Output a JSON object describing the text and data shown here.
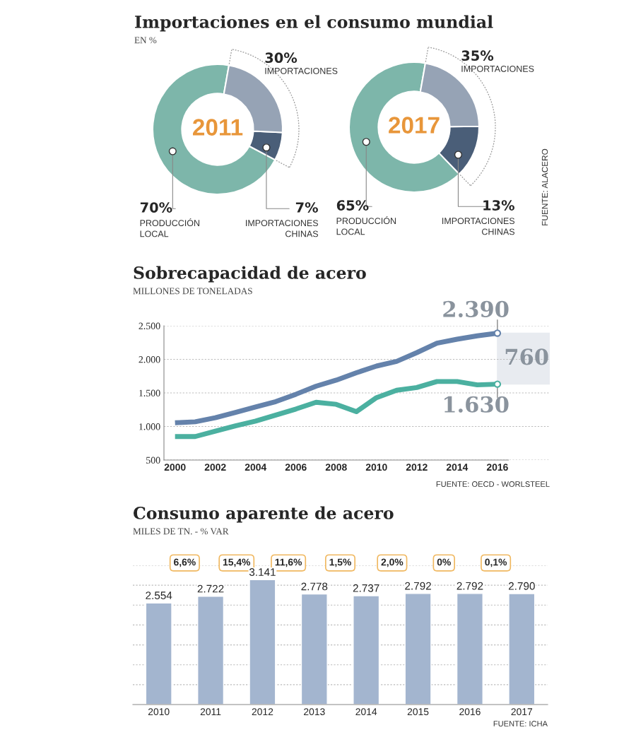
{
  "chart_data": [
    {
      "type": "donut",
      "title": "Importaciones en el consumo mundial",
      "subtitle": "EN %",
      "categories": [
        "PRODUCCIÓN\nLOCAL",
        "IMPORTACIONES\nCHINAS",
        null
      ],
      "values": [
        70,
        7,
        23
      ],
      "colors": [
        "#7db6aa",
        "#4a5e78",
        "#96a3b5"
      ],
      "value_labels": [
        "70%",
        "7%",
        null
      ],
      "annotations": [
        "2011",
        "30%",
        "IMPORTACIONES"
      ]
    },
    {
      "type": "donut",
      "categories": [
        "PRODUCCIÓN\nLOCAL",
        "IMPORTACIONES\nCHINAS",
        null
      ],
      "values": [
        65,
        13,
        22
      ],
      "colors": [
        "#7db6aa",
        "#4a5e78",
        "#96a3b5"
      ],
      "value_labels": [
        "65%",
        "13%",
        null
      ],
      "annotations": [
        "2017",
        "35%",
        "IMPORTACIONES",
        "FUENTE: ALACERO"
      ]
    },
    {
      "type": "line",
      "title": "Sobrecapacidad de acero",
      "subtitle": "MILLONES DE TONELADAS",
      "x": [
        2000,
        2001,
        2002,
        2003,
        2004,
        2005,
        2006,
        2007,
        2008,
        2009,
        2010,
        2011,
        2012,
        2013,
        2014,
        2015,
        2016
      ],
      "series": [
        {
          "color": "#6482ab",
          "values": [
            1055,
            1070,
            1130,
            1210,
            1290,
            1370,
            1480,
            1600,
            1690,
            1800,
            1900,
            1970,
            2100,
            2240,
            2300,
            2350,
            2390
          ]
        },
        {
          "color": "#4bb0a0",
          "values": [
            850,
            850,
            930,
            1010,
            1080,
            1170,
            1260,
            1360,
            1330,
            1220,
            1430,
            1540,
            1580,
            1670,
            1670,
            1620,
            1630
          ]
        }
      ],
      "xlim": [
        1999.45,
        2018.6
      ],
      "xticks": [
        2000,
        2002,
        2004,
        2006,
        2008,
        2010,
        2012,
        2014,
        2016
      ],
      "ylim": [
        500,
        2500
      ],
      "yticks": [
        {
          "value": 500,
          "label": "500"
        },
        {
          "value": 1000,
          "label": "1.000"
        },
        {
          "value": 1500,
          "label": "1.500"
        },
        {
          "value": 2000,
          "label": "2.000"
        },
        {
          "value": 2500,
          "label": "2.500"
        }
      ],
      "grid": "y",
      "marker": "none",
      "line_style": "solid",
      "bands": [
        {
          "axis": "y",
          "from": 1630,
          "to": 2390,
          "label": "760",
          "color": "#e8ebf0"
        }
      ],
      "annotations": [
        {
          "text": "2.390",
          "x": 2016,
          "y": 2390
        },
        {
          "text": "1.630",
          "x": 2016,
          "y": 1630
        },
        "FUENTE: OECD - WORLSTEEL"
      ]
    },
    {
      "type": "bar",
      "title": "Consumo aparente de acero",
      "subtitle": "MILES DE TN. - % VAR",
      "categories": [
        "2010",
        "2011",
        "2012",
        "2013",
        "2014",
        "2015",
        "2016",
        "2017"
      ],
      "values": [
        2554,
        2722,
        3141,
        2778,
        2737,
        2792,
        2792,
        2790
      ],
      "color": "#a3b5cf",
      "value_labels": [
        "2.554",
        "2.722",
        "3.141",
        "2.778",
        "2.737",
        "2.792",
        "2.792",
        "2.790"
      ],
      "ylim": [
        0,
        3500
      ],
      "yticks": [
        {
          "value": 500,
          "label": null
        },
        {
          "value": 1000,
          "label": null
        },
        {
          "value": 1500,
          "label": null
        },
        {
          "value": 2000,
          "label": null
        },
        {
          "value": 2500,
          "label": null
        },
        {
          "value": 3000,
          "label": null
        },
        {
          "value": 3500,
          "label": null
        }
      ],
      "tick_labels": "x",
      "grid": "y",
      "annotations": [
        "6,6%",
        "15,4%",
        "11,6%",
        "1,5%",
        "2,0%",
        "0%",
        "0,1%",
        "FUENTE: ICHA"
      ]
    }
  ]
}
